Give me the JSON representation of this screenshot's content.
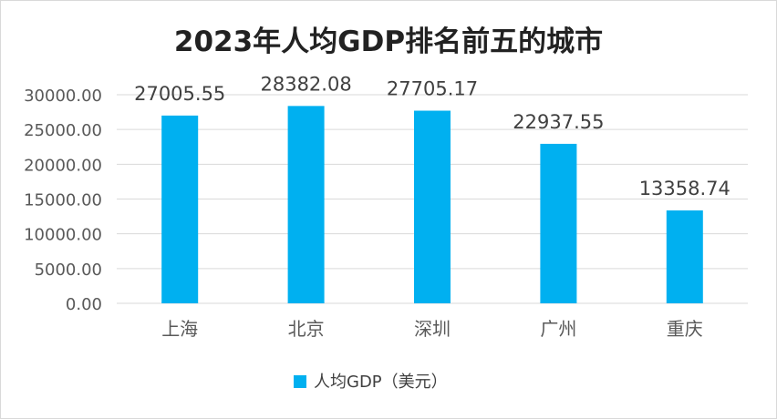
{
  "chart_data": {
    "type": "bar",
    "title": "2023年人均GDP排名前五的城市",
    "categories": [
      "上海",
      "北京",
      "深圳",
      "广州",
      "重庆"
    ],
    "series": [
      {
        "name": "人均GDP（美元）",
        "values": [
          27005.55,
          28382.08,
          27705.17,
          22937.55,
          13358.74
        ],
        "color": "#00b0f0"
      }
    ],
    "data_labels": [
      "27005.55",
      "28382.08",
      "27705.17",
      "22937.55",
      "13358.74"
    ],
    "ylim": [
      0,
      30000
    ],
    "yticks": [
      0,
      5000,
      10000,
      15000,
      20000,
      25000,
      30000
    ],
    "ytick_labels": [
      "0.00",
      "5000.00",
      "10000.00",
      "15000.00",
      "20000.00",
      "25000.00",
      "30000.00"
    ],
    "grid": true,
    "legend_position": "bottom",
    "gridline_color": "#d9d9d9"
  }
}
